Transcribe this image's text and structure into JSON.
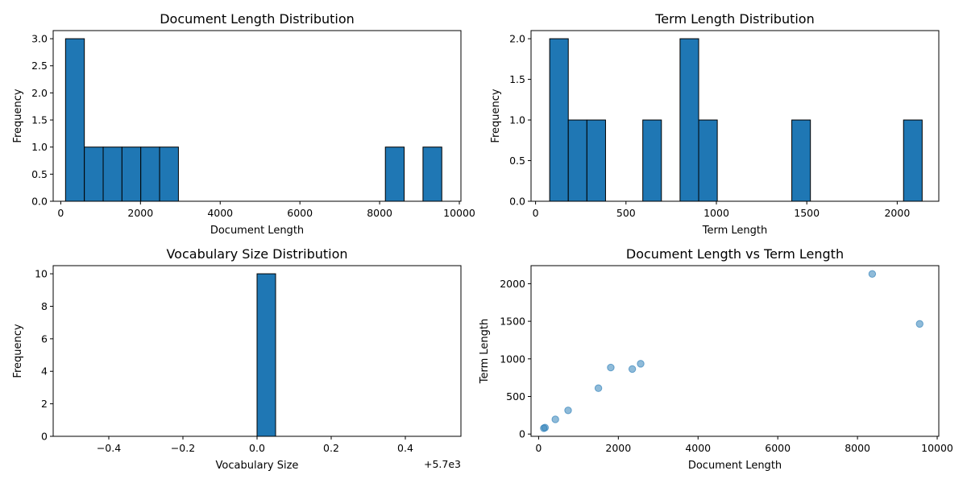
{
  "chart_data": [
    {
      "type": "bar",
      "title": "Document Length Distribution",
      "xlabel": "Document Length",
      "ylabel": "Frequency",
      "xlim": [
        -190,
        10040
      ],
      "ylim": [
        0,
        3.15
      ],
      "xticks": [
        0,
        2000,
        4000,
        6000,
        8000,
        10000
      ],
      "xtick_labels": [
        "0",
        "2000",
        "4000",
        "6000",
        "8000",
        "10000"
      ],
      "yticks": [
        0,
        0.5,
        1.0,
        1.5,
        2.0,
        2.5,
        3.0
      ],
      "ytick_labels": [
        "0.0",
        "0.5",
        "1.0",
        "1.5",
        "2.0",
        "2.5",
        "3.0"
      ],
      "bin_start": 120,
      "bin_width": 472,
      "counts": [
        3,
        1,
        1,
        1,
        1,
        1,
        0,
        0,
        0,
        0,
        0,
        0,
        0,
        0,
        0,
        0,
        0,
        1,
        0,
        1
      ]
    },
    {
      "type": "bar",
      "title": "Term Length Distribution",
      "xlabel": "Term Length",
      "ylabel": "Frequency",
      "xlim": [
        -25,
        2230
      ],
      "ylim": [
        0,
        2.1
      ],
      "xticks": [
        0,
        500,
        1000,
        1500,
        2000
      ],
      "xtick_labels": [
        "0",
        "500",
        "1000",
        "1500",
        "2000"
      ],
      "yticks": [
        0,
        0.5,
        1.0,
        1.5,
        2.0
      ],
      "ytick_labels": [
        "0.0",
        "0.5",
        "1.0",
        "1.5",
        "2.0"
      ],
      "bin_start": 78,
      "bin_width": 103,
      "counts": [
        2,
        1,
        1,
        0,
        0,
        1,
        0,
        2,
        1,
        0,
        0,
        0,
        0,
        1,
        0,
        0,
        0,
        0,
        0,
        1
      ]
    },
    {
      "type": "bar",
      "title": "Vocabulary Size Distribution",
      "xlabel": "Vocabulary Size",
      "ylabel": "Frequency",
      "offset_label": "+5.7e3",
      "xlim": [
        -0.55,
        0.55
      ],
      "ylim": [
        0,
        10.5
      ],
      "xticks": [
        -0.4,
        -0.2,
        0.0,
        0.2,
        0.4
      ],
      "xtick_labels": [
        "−0.4",
        "−0.2",
        "0.0",
        "0.2",
        "0.4"
      ],
      "yticks": [
        0,
        2,
        4,
        6,
        8,
        10
      ],
      "ytick_labels": [
        "0",
        "2",
        "4",
        "6",
        "8",
        "10"
      ],
      "bin_start": -0.5,
      "bin_width": 0.05,
      "counts": [
        0,
        0,
        0,
        0,
        0,
        0,
        0,
        0,
        0,
        0,
        10,
        0,
        0,
        0,
        0,
        0,
        0,
        0,
        0,
        0
      ]
    },
    {
      "type": "scatter",
      "title": "Document Length vs Term Length",
      "xlabel": "Document Length",
      "ylabel": "Term Length",
      "xlim": [
        -190,
        10040
      ],
      "ylim": [
        -30,
        2240
      ],
      "xticks": [
        0,
        2000,
        4000,
        6000,
        8000,
        10000
      ],
      "xtick_labels": [
        "0",
        "2000",
        "4000",
        "6000",
        "8000",
        "10000"
      ],
      "yticks": [
        0,
        500,
        1000,
        1500,
        2000
      ],
      "ytick_labels": [
        "0",
        "500",
        "1000",
        "1500",
        "2000"
      ],
      "points": [
        {
          "x": 130,
          "y": 78
        },
        {
          "x": 160,
          "y": 85
        },
        {
          "x": 420,
          "y": 195
        },
        {
          "x": 740,
          "y": 315
        },
        {
          "x": 1500,
          "y": 610
        },
        {
          "x": 1810,
          "y": 885
        },
        {
          "x": 2350,
          "y": 865
        },
        {
          "x": 2560,
          "y": 935
        },
        {
          "x": 8370,
          "y": 2130
        },
        {
          "x": 9560,
          "y": 1465
        }
      ]
    }
  ],
  "colors": {
    "bar": "#1f77b4",
    "bar_edge": "#000000",
    "point": "#1f77b4"
  }
}
